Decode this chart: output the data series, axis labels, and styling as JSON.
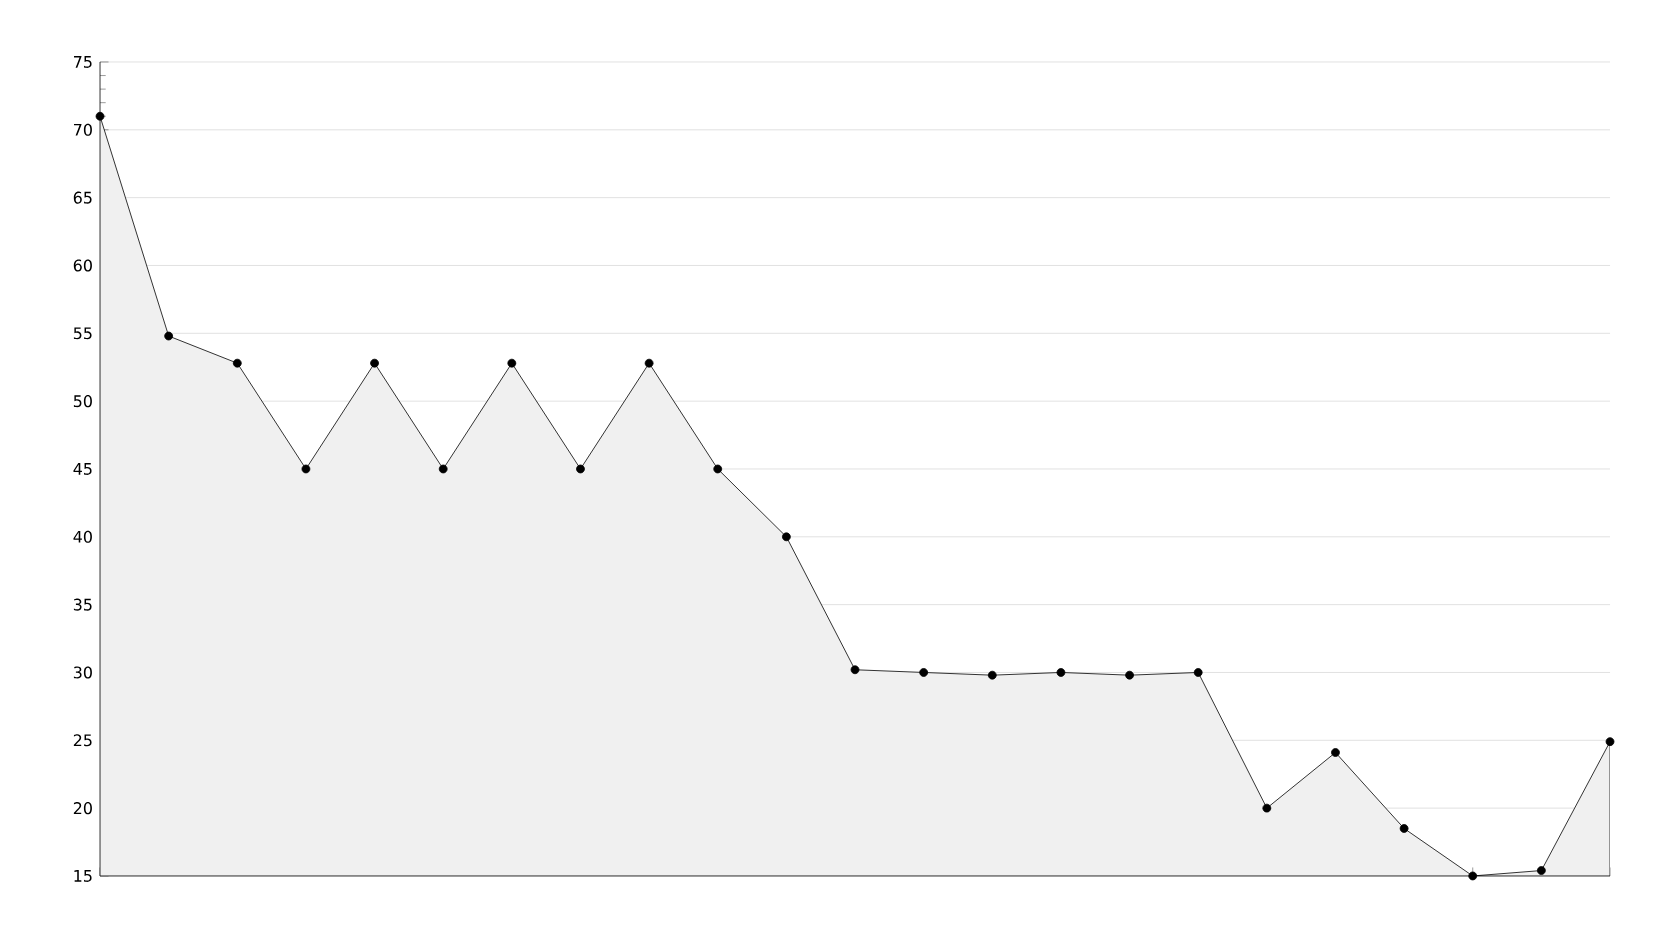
{
  "chart_data": {
    "type": "area",
    "categories": [
      null,
      null,
      null,
      null,
      null,
      null,
      null,
      null,
      null,
      null,
      null,
      null,
      null,
      null,
      null,
      null,
      null,
      null,
      null,
      null,
      null,
      null,
      null
    ],
    "values": [
      71,
      54.8,
      52.8,
      45,
      52.8,
      45,
      52.8,
      45,
      52.8,
      45,
      40,
      30.2,
      30,
      29.8,
      30,
      29.8,
      30,
      20,
      24.1,
      18.5,
      15,
      15.4,
      24.9
    ],
    "color": "#000000",
    "marker": "circle",
    "grid": "y",
    "tick_labels": "y",
    "ylim": [
      15,
      75
    ],
    "yticks": [
      15,
      20,
      25,
      30,
      35,
      40,
      45,
      50,
      55,
      60,
      65,
      70,
      75
    ]
  }
}
